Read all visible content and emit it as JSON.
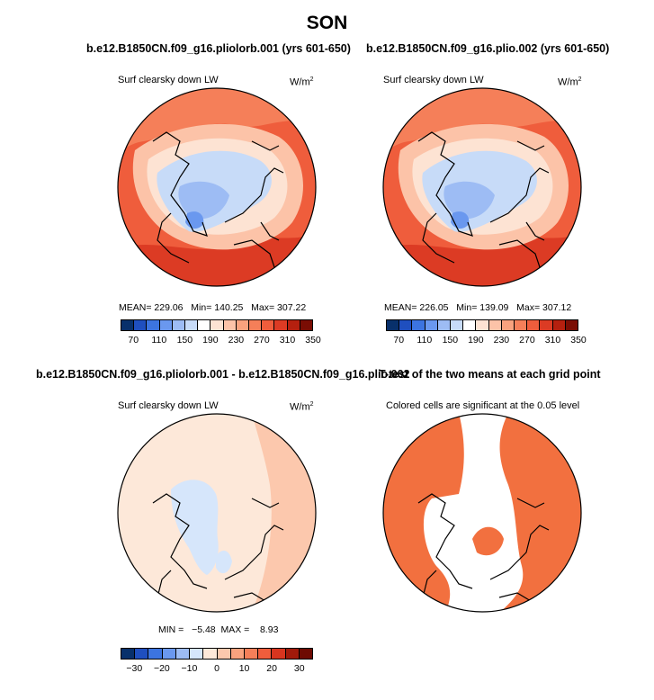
{
  "figure": {
    "title": "SON"
  },
  "panels": [
    {
      "id": "p1",
      "title": "b.e12.B1850CN.f09_g16.pliolorb.001 (yrs 601-650)",
      "subtitle": "Surf clearsky down LW",
      "units_base": "W/m",
      "units_exp": "2",
      "stats": {
        "mean_label": "MEAN=",
        "mean": "229.06",
        "min_label": "Min=",
        "min": "140.25",
        "max_label": "Max=",
        "max": "307.22"
      },
      "colorbar_ticks": [
        "70",
        "110",
        "150",
        "190",
        "230",
        "270",
        "310",
        "350"
      ]
    },
    {
      "id": "p2",
      "title": "b.e12.B1850CN.f09_g16.plio.002 (yrs 601-650)",
      "subtitle": "Surf clearsky down LW",
      "units_base": "W/m",
      "units_exp": "2",
      "stats": {
        "mean_label": "MEAN=",
        "mean": "226.05",
        "min_label": "Min=",
        "min": "139.09",
        "max_label": "Max=",
        "max": "307.12"
      },
      "colorbar_ticks": [
        "70",
        "110",
        "150",
        "190",
        "230",
        "270",
        "310",
        "350"
      ]
    },
    {
      "id": "p3",
      "title": "b.e12.B1850CN.f09_g16.pliolorb.001 - b.e12.B1850CN.f09_g16.plio.002",
      "subtitle": "Surf clearsky down LW",
      "units_base": "W/m",
      "units_exp": "2",
      "stats": {
        "min_label": "MIN =",
        "min": "−5.48",
        "max_label": "MAX =",
        "max": "8.93"
      },
      "colorbar_ticks": [
        "−30",
        "−20",
        "−10",
        "0",
        "10",
        "20",
        "30"
      ]
    },
    {
      "id": "p4",
      "title": "T-test of the two means at each grid point",
      "subtitle": "Colored cells are significant at the 0.05 level"
    }
  ],
  "colorbars": {
    "abs_colors": [
      "#08306b",
      "#1f4fbf",
      "#3c74e0",
      "#6a98ef",
      "#9dbcf4",
      "#c7dbf8",
      "#ffffff",
      "#fde3d3",
      "#fcc3a8",
      "#f9a27e",
      "#f57f59",
      "#ef5d3c",
      "#dc3b24",
      "#b5200f",
      "#7a0d04"
    ],
    "diff_colors": [
      "#08306b",
      "#1f4fbf",
      "#3c74e0",
      "#6a98ef",
      "#9dbcf4",
      "#d6e6fb",
      "#fde8d9",
      "#fcc8ad",
      "#f9a27e",
      "#f57f59",
      "#ef5d3c",
      "#d8351f",
      "#a11a0b",
      "#6e0b03"
    ]
  },
  "chart_data": [
    {
      "type": "heatmap",
      "projection": "north polar stereographic",
      "title": "b.e12.B1850CN.f09_g16.pliolorb.001 (yrs 601-650)",
      "variable": "Surf clearsky down LW",
      "units": "W/m2",
      "mean": 229.06,
      "min": 140.25,
      "max": 307.22,
      "contour_levels": [
        70,
        110,
        150,
        190,
        230,
        270,
        310,
        350
      ]
    },
    {
      "type": "heatmap",
      "projection": "north polar stereographic",
      "title": "b.e12.B1850CN.f09_g16.plio.002 (yrs 601-650)",
      "variable": "Surf clearsky down LW",
      "units": "W/m2",
      "mean": 226.05,
      "min": 139.09,
      "max": 307.12,
      "contour_levels": [
        70,
        110,
        150,
        190,
        230,
        270,
        310,
        350
      ]
    },
    {
      "type": "heatmap",
      "projection": "north polar stereographic",
      "title": "b.e12.B1850CN.f09_g16.pliolorb.001 - b.e12.B1850CN.f09_g16.plio.002",
      "variable": "Surf clearsky down LW",
      "units": "W/m2",
      "min": -5.48,
      "max": 8.93,
      "contour_levels": [
        -30,
        -20,
        -10,
        0,
        10,
        20,
        30
      ]
    },
    {
      "type": "heatmap",
      "projection": "north polar stereographic",
      "title": "T-test of the two means at each grid point",
      "note": "Colored cells are significant at the 0.05 level",
      "significance_level": 0.05
    }
  ]
}
